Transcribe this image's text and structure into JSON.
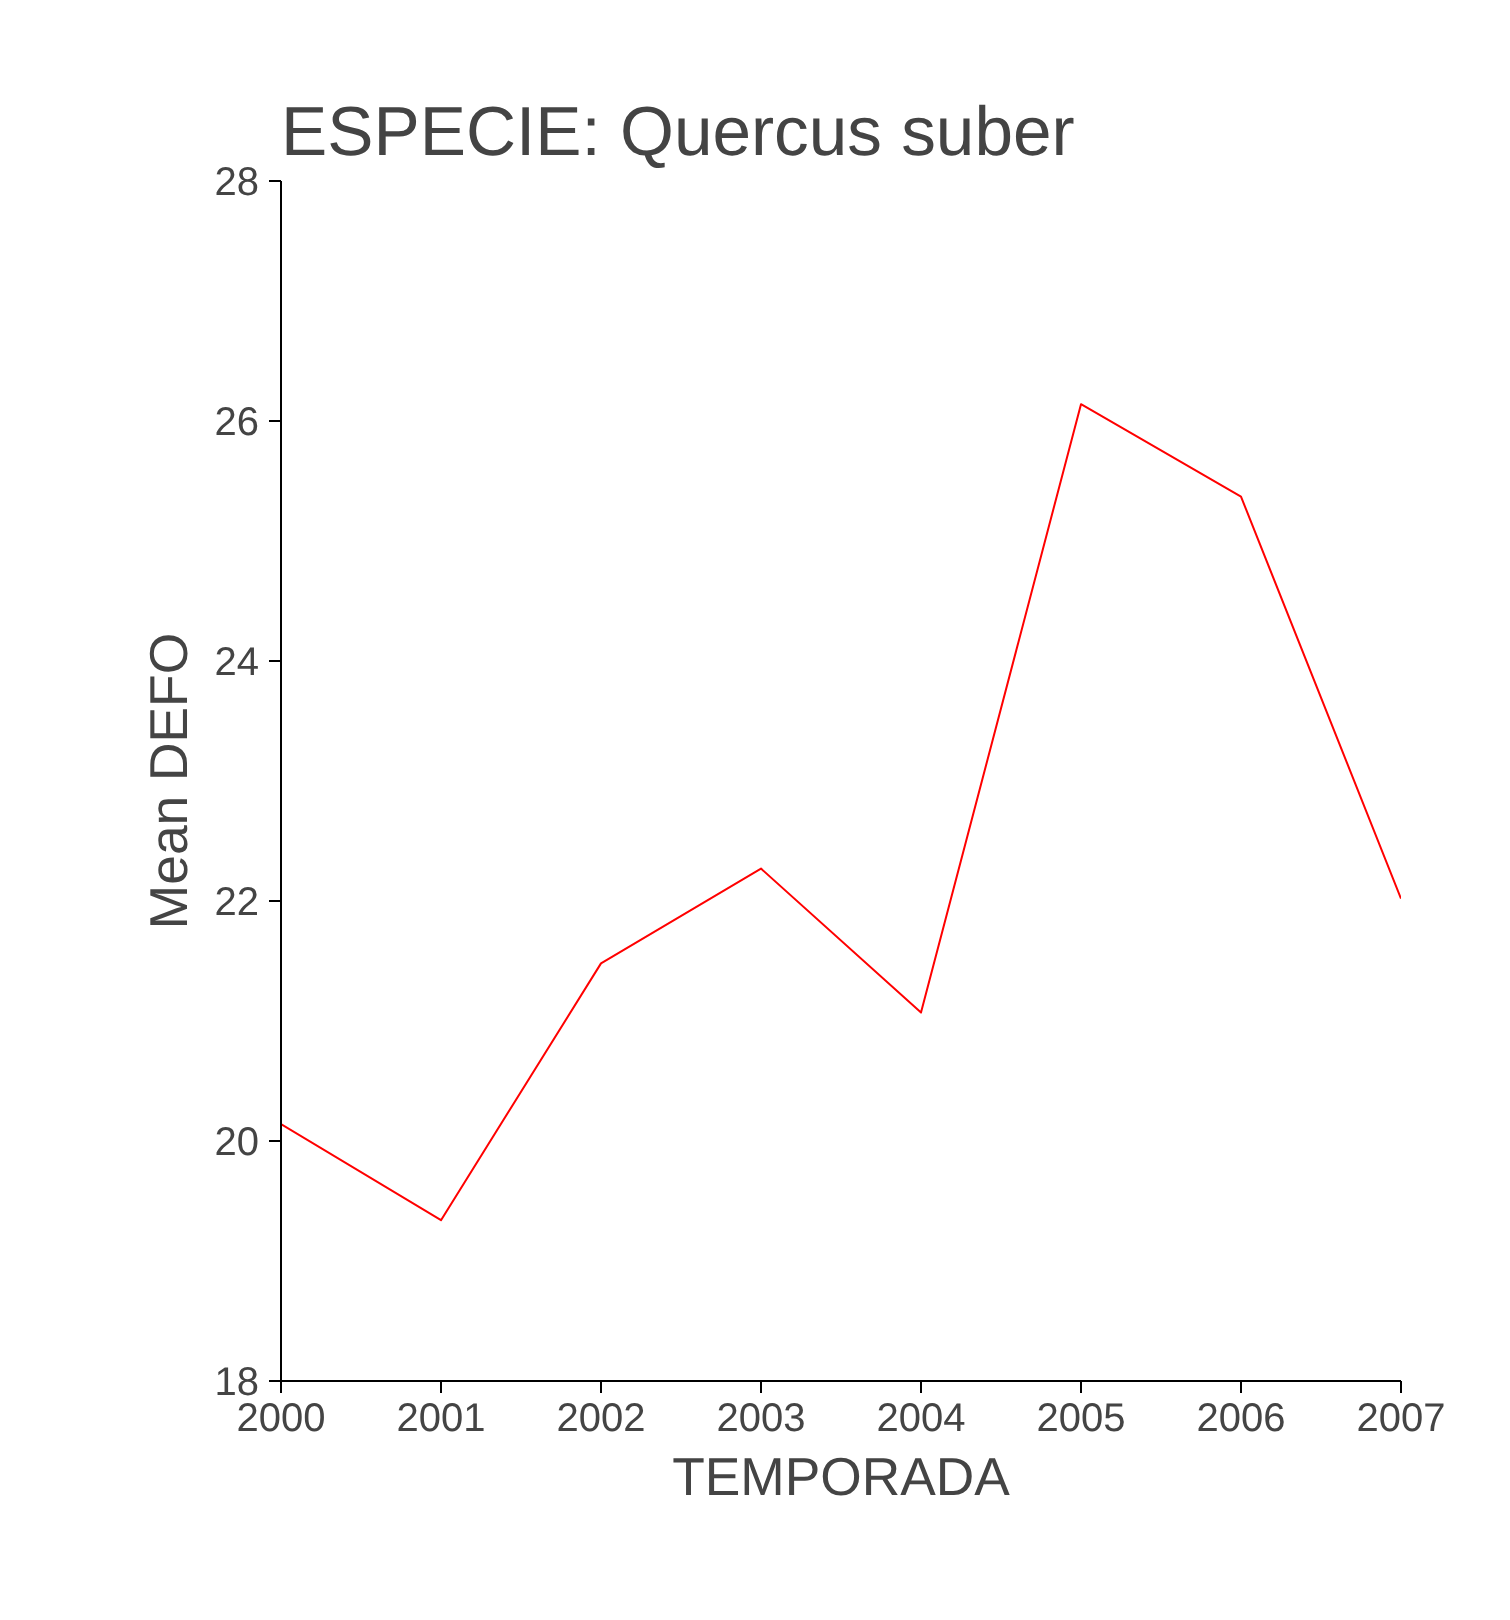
{
  "chart_data": {
    "type": "line",
    "title": "ESPECIE:  Quercus suber",
    "xlabel": "TEMPORADA",
    "ylabel": "Mean DEFO",
    "x": [
      2000,
      2001,
      2002,
      2003,
      2004,
      2005,
      2006,
      2007
    ],
    "series": [
      {
        "color": "#ff0000",
        "values": [
          20.14,
          19.34,
          21.48,
          22.27,
          21.07,
          26.14,
          25.37,
          22.02
        ]
      }
    ],
    "xlim": [
      2000,
      2007
    ],
    "xticks": [
      2000,
      2001,
      2002,
      2003,
      2004,
      2005,
      2006,
      2007
    ],
    "ylim": [
      18,
      28
    ],
    "yticks": [
      18,
      20,
      22,
      24,
      26,
      28
    ],
    "grid": false,
    "marker": "none",
    "line_style": "solid"
  }
}
